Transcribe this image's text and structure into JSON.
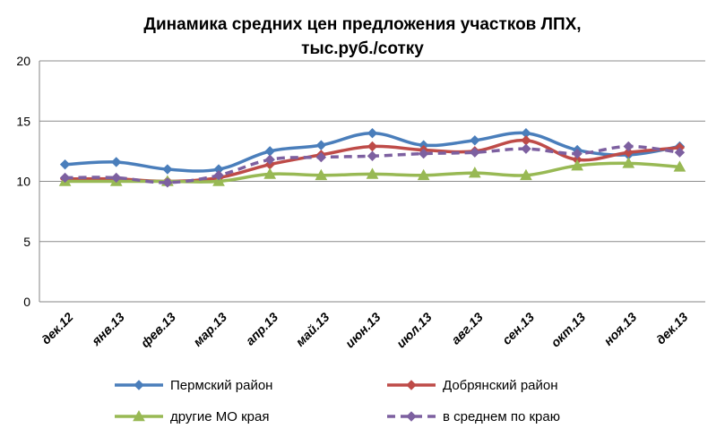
{
  "chart_data": {
    "type": "line",
    "title_line1": "Динамика средних цен предложения участков ЛПХ,",
    "title_line2": "тыс.руб./сотку",
    "categories": [
      "дек.12",
      "янв.13",
      "фев.13",
      "мар.13",
      "апр.13",
      "май.13",
      "июн.13",
      "июл.13",
      "авг.13",
      "сен.13",
      "окт.13",
      "ноя.13",
      "дек.13"
    ],
    "ylim": [
      0,
      20
    ],
    "yticks": [
      0,
      5,
      10,
      15,
      20
    ],
    "grid": true,
    "legend_position": "bottom",
    "series": [
      {
        "name": "Пермский район",
        "color": "#4A7EBB",
        "marker": "diamond",
        "dash": false,
        "values": [
          11.4,
          11.6,
          11.0,
          11.0,
          12.5,
          13.0,
          14.0,
          13.0,
          13.4,
          14.0,
          12.6,
          12.2,
          12.9
        ]
      },
      {
        "name": "Добрянский район",
        "color": "#BE4B48",
        "marker": "diamond",
        "dash": false,
        "values": [
          10.2,
          10.2,
          10.0,
          10.3,
          11.4,
          12.2,
          12.9,
          12.6,
          12.5,
          13.4,
          11.8,
          12.4,
          12.8
        ]
      },
      {
        "name": "другие МО края",
        "color": "#98B954",
        "marker": "triangle",
        "dash": false,
        "values": [
          10.0,
          10.0,
          10.0,
          10.0,
          10.6,
          10.5,
          10.6,
          10.5,
          10.7,
          10.5,
          11.3,
          11.5,
          11.2
        ]
      },
      {
        "name": "в среднем по краю",
        "color": "#7D60A0",
        "marker": "diamond",
        "dash": true,
        "values": [
          10.3,
          10.3,
          9.9,
          10.5,
          11.8,
          12.0,
          12.1,
          12.3,
          12.4,
          12.7,
          12.3,
          12.9,
          12.4
        ]
      }
    ]
  }
}
